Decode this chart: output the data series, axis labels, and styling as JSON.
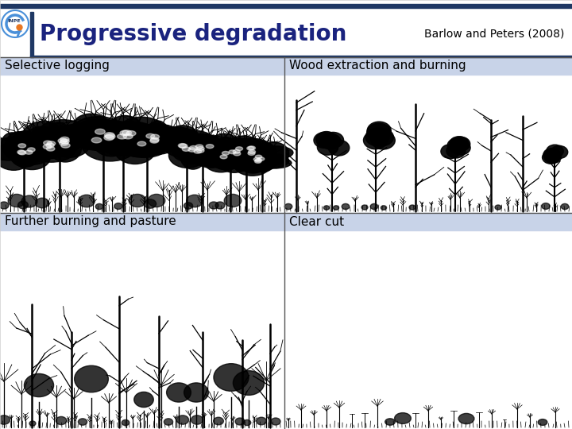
{
  "title": "Progressive degradation",
  "subtitle": "Barlow and Peters (2008)",
  "background_color": "#ffffff",
  "header_line_color": "#1f3864",
  "title_color": "#1a237e",
  "title_fontsize": 20,
  "subtitle_fontsize": 10,
  "subtitle_color": "#000000",
  "panel_labels": [
    "Selective logging",
    "Wood extraction and burning",
    "Further burning and pasture",
    "Clear cut"
  ],
  "panel_label_bg": [
    "#c8d3e8",
    "#c8d3e8",
    "#c8d3e8",
    "#c8d3e8"
  ],
  "panel_label_fontsize": 11,
  "panel_label_color": "#000000",
  "logo_color": "#4a90d9",
  "divider_color": "#555555",
  "left_bar_color": "#1f3864",
  "header_top_line_color": "#1f3864",
  "header_bottom_line_color": "#1f3864"
}
